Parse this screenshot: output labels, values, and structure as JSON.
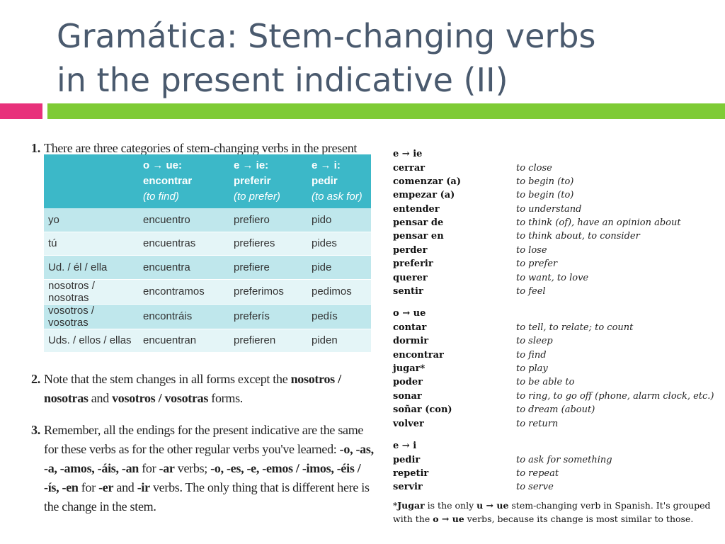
{
  "title": {
    "line1": "Gramática: Stem-changing verbs",
    "line2": "in the present indicative (II)"
  },
  "colors": {
    "title": "#4a5a6e",
    "accent_pink": "#e8317b",
    "accent_green": "#7ecb35",
    "table_header": "#3cb8c8"
  },
  "notes": {
    "n1": {
      "num": "1.",
      "text": "There are three categories of stem-changing verbs in the present indicative."
    },
    "n2": {
      "num": "2.",
      "text_a": "Note that the stem changes in all forms except the ",
      "bold_a": "nosotros / nosotras",
      "text_b": " and ",
      "bold_b": "vosotros / vosotras",
      "text_c": " forms."
    },
    "n3": {
      "num": "3.",
      "text_a": "Remember, all the endings for the present indicative are the same for these verbs as for the other regular verbs you've learned: ",
      "bold_ar_endings": "-o, -as, -a, -amos, -áis, -an",
      "text_b": " for ",
      "bold_ar": "-ar",
      "text_c": " verbs; ",
      "bold_er_ir_endings": "-o, -es, -e, -emos / -imos, -éis / -ís, -en",
      "text_d": " for ",
      "bold_er": "-er",
      "text_e": " and ",
      "bold_ir": "-ir",
      "text_f": " verbs. The only thing that is different here is the change in the stem."
    }
  },
  "table": {
    "headers": [
      {
        "label": "",
        "gloss": ""
      },
      {
        "label": "o → ue: encontrar",
        "gloss": "(to find)"
      },
      {
        "label": "e → ie: preferir",
        "gloss": "(to prefer)"
      },
      {
        "label": "e → i: pedir",
        "gloss": "(to ask for)"
      }
    ],
    "rows": [
      [
        "yo",
        "encuentro",
        "prefiero",
        "pido"
      ],
      [
        "tú",
        "encuentras",
        "prefieres",
        "pides"
      ],
      [
        "Ud. / él / ella",
        "encuentra",
        "prefiere",
        "pide"
      ],
      [
        "nosotros / nosotras",
        "encontramos",
        "preferimos",
        "pedimos"
      ],
      [
        "vosotros / vosotras",
        "encontráis",
        "preferís",
        "pedís"
      ],
      [
        "Uds. / ellos / ellas",
        "encuentran",
        "prefieren",
        "piden"
      ]
    ]
  },
  "verb_groups": [
    {
      "head": "e → ie",
      "verbs": [
        [
          "cerrar",
          "to close"
        ],
        [
          "comenzar (a)",
          "to begin (to)"
        ],
        [
          "empezar (a)",
          "to begin (to)"
        ],
        [
          "entender",
          "to understand"
        ],
        [
          "pensar de",
          "to think (of), have an opinion about"
        ],
        [
          "pensar en",
          "to think about, to consider"
        ],
        [
          "perder",
          "to lose"
        ],
        [
          "preferir",
          "to prefer"
        ],
        [
          "querer",
          "to want, to love"
        ],
        [
          "sentir",
          "to feel"
        ]
      ]
    },
    {
      "head": "o → ue",
      "verbs": [
        [
          "contar",
          "to tell, to relate; to count"
        ],
        [
          "dormir",
          "to sleep"
        ],
        [
          "encontrar",
          "to find"
        ],
        [
          "jugar*",
          "to play"
        ],
        [
          "poder",
          "to be able to"
        ],
        [
          "sonar",
          "to ring, to go off (phone, alarm clock, etc.)"
        ],
        [
          "soñar (con)",
          "to dream (about)"
        ],
        [
          "volver",
          "to return"
        ]
      ]
    },
    {
      "head": "e → i",
      "verbs": [
        [
          "pedir",
          "to ask for something"
        ],
        [
          "repetir",
          "to repeat"
        ],
        [
          "servir",
          "to serve"
        ]
      ]
    }
  ],
  "footnote": {
    "a": "*",
    "b1": "Jugar",
    "c": " is the only ",
    "b2": "u → ue",
    "d": " stem-changing verb in Spanish. It's grouped with the ",
    "b3": "o → ue",
    "e": " verbs, because its change is most similar to those."
  }
}
